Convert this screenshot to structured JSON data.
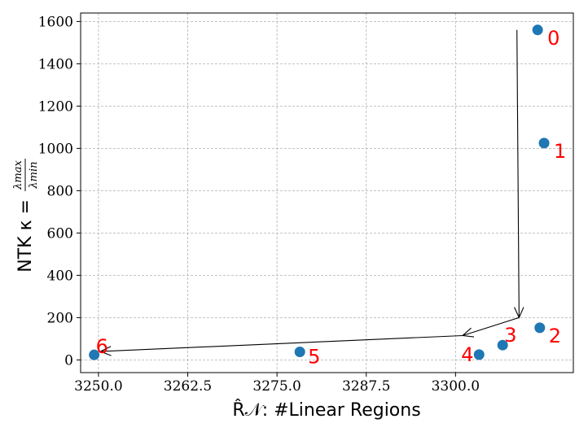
{
  "chart_data": {
    "type": "scatter",
    "title": "",
    "xlabel": "R̂𝒩: #Linear Regions",
    "ylabel": "NTK κ = λmax / λmin",
    "ylabel_parts": {
      "prefix": "NTK κ =",
      "numerator": "λmax",
      "denominator": "λmin"
    },
    "xlim": [
      3247.5,
      3316.5
    ],
    "ylim": [
      -60,
      1640
    ],
    "x_ticks": [
      3250.0,
      3262.5,
      3275.0,
      3287.5,
      3300.0
    ],
    "x_tick_labels": [
      "3250.0",
      "3262.5",
      "3275.0",
      "3287.5",
      "3300.0"
    ],
    "y_ticks": [
      0,
      200,
      400,
      600,
      800,
      1000,
      1200,
      1400,
      1600
    ],
    "y_tick_labels": [
      "0",
      "200",
      "400",
      "600",
      "800",
      "1000",
      "1200",
      "1400",
      "1600"
    ],
    "grid": true,
    "point_color": "#1f77b4",
    "label_color": "#ff0000",
    "points": [
      {
        "label": "0",
        "x": 3311.5,
        "y": 1560
      },
      {
        "label": "1",
        "x": 3312.4,
        "y": 1025
      },
      {
        "label": "2",
        "x": 3311.8,
        "y": 152
      },
      {
        "label": "3",
        "x": 3306.6,
        "y": 70
      },
      {
        "label": "4",
        "x": 3303.3,
        "y": 25
      },
      {
        "label": "5",
        "x": 3278.2,
        "y": 38
      },
      {
        "label": "6",
        "x": 3249.4,
        "y": 24
      }
    ],
    "arrows": [
      {
        "from": [
          3308.6,
          1560
        ],
        "to": [
          3308.9,
          200
        ]
      },
      {
        "from": [
          3308.9,
          200
        ],
        "to": [
          3301.0,
          115
        ]
      },
      {
        "from": [
          3301.0,
          115
        ],
        "to": [
          3250.3,
          40
        ]
      }
    ]
  }
}
